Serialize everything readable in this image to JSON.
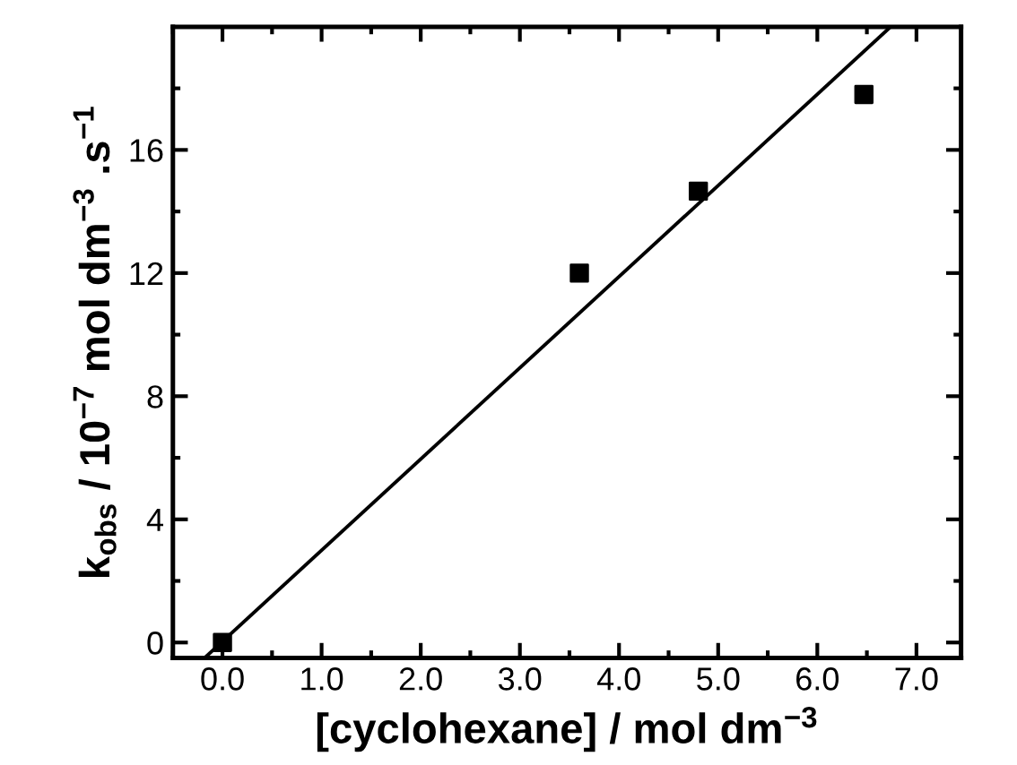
{
  "chart_data": {
    "type": "scatter",
    "xlabel": "[cyclohexane] / mol dm$^{−3}$",
    "ylabel": "k$_{obs}$ / 10$^{−7}$ mol dm$^{−3}$ .s$^{−1}$",
    "series": [
      {
        "color": "#000000",
        "marker": "square",
        "x": [
          0.0,
          3.6,
          4.8,
          6.47
        ],
        "values": [
          0.0,
          12.0,
          14.66,
          17.8
        ]
      },
      {
        "type": "line",
        "color": "#000000",
        "marker": "none",
        "line_style": "solid",
        "x": [
          -0.18,
          6.74
        ],
        "values": [
          -0.5,
          20.0
        ]
      }
    ],
    "xlim": [
      -0.5,
      7.45
    ],
    "ylim": [
      -0.5,
      20
    ],
    "xticks": [
      {
        "value": 0,
        "label": "0.0"
      },
      {
        "value": 1,
        "label": "1.0"
      },
      {
        "value": 2,
        "label": "2.0"
      },
      {
        "value": 3,
        "label": "3.0"
      },
      {
        "value": 4,
        "label": "4.0"
      },
      {
        "value": 5,
        "label": "5.0"
      },
      {
        "value": 6,
        "label": "6.0"
      },
      {
        "value": 7,
        "label": "7.0"
      }
    ],
    "yticks": [
      0,
      4,
      8,
      12,
      16
    ],
    "grid": false,
    "legend": false
  }
}
